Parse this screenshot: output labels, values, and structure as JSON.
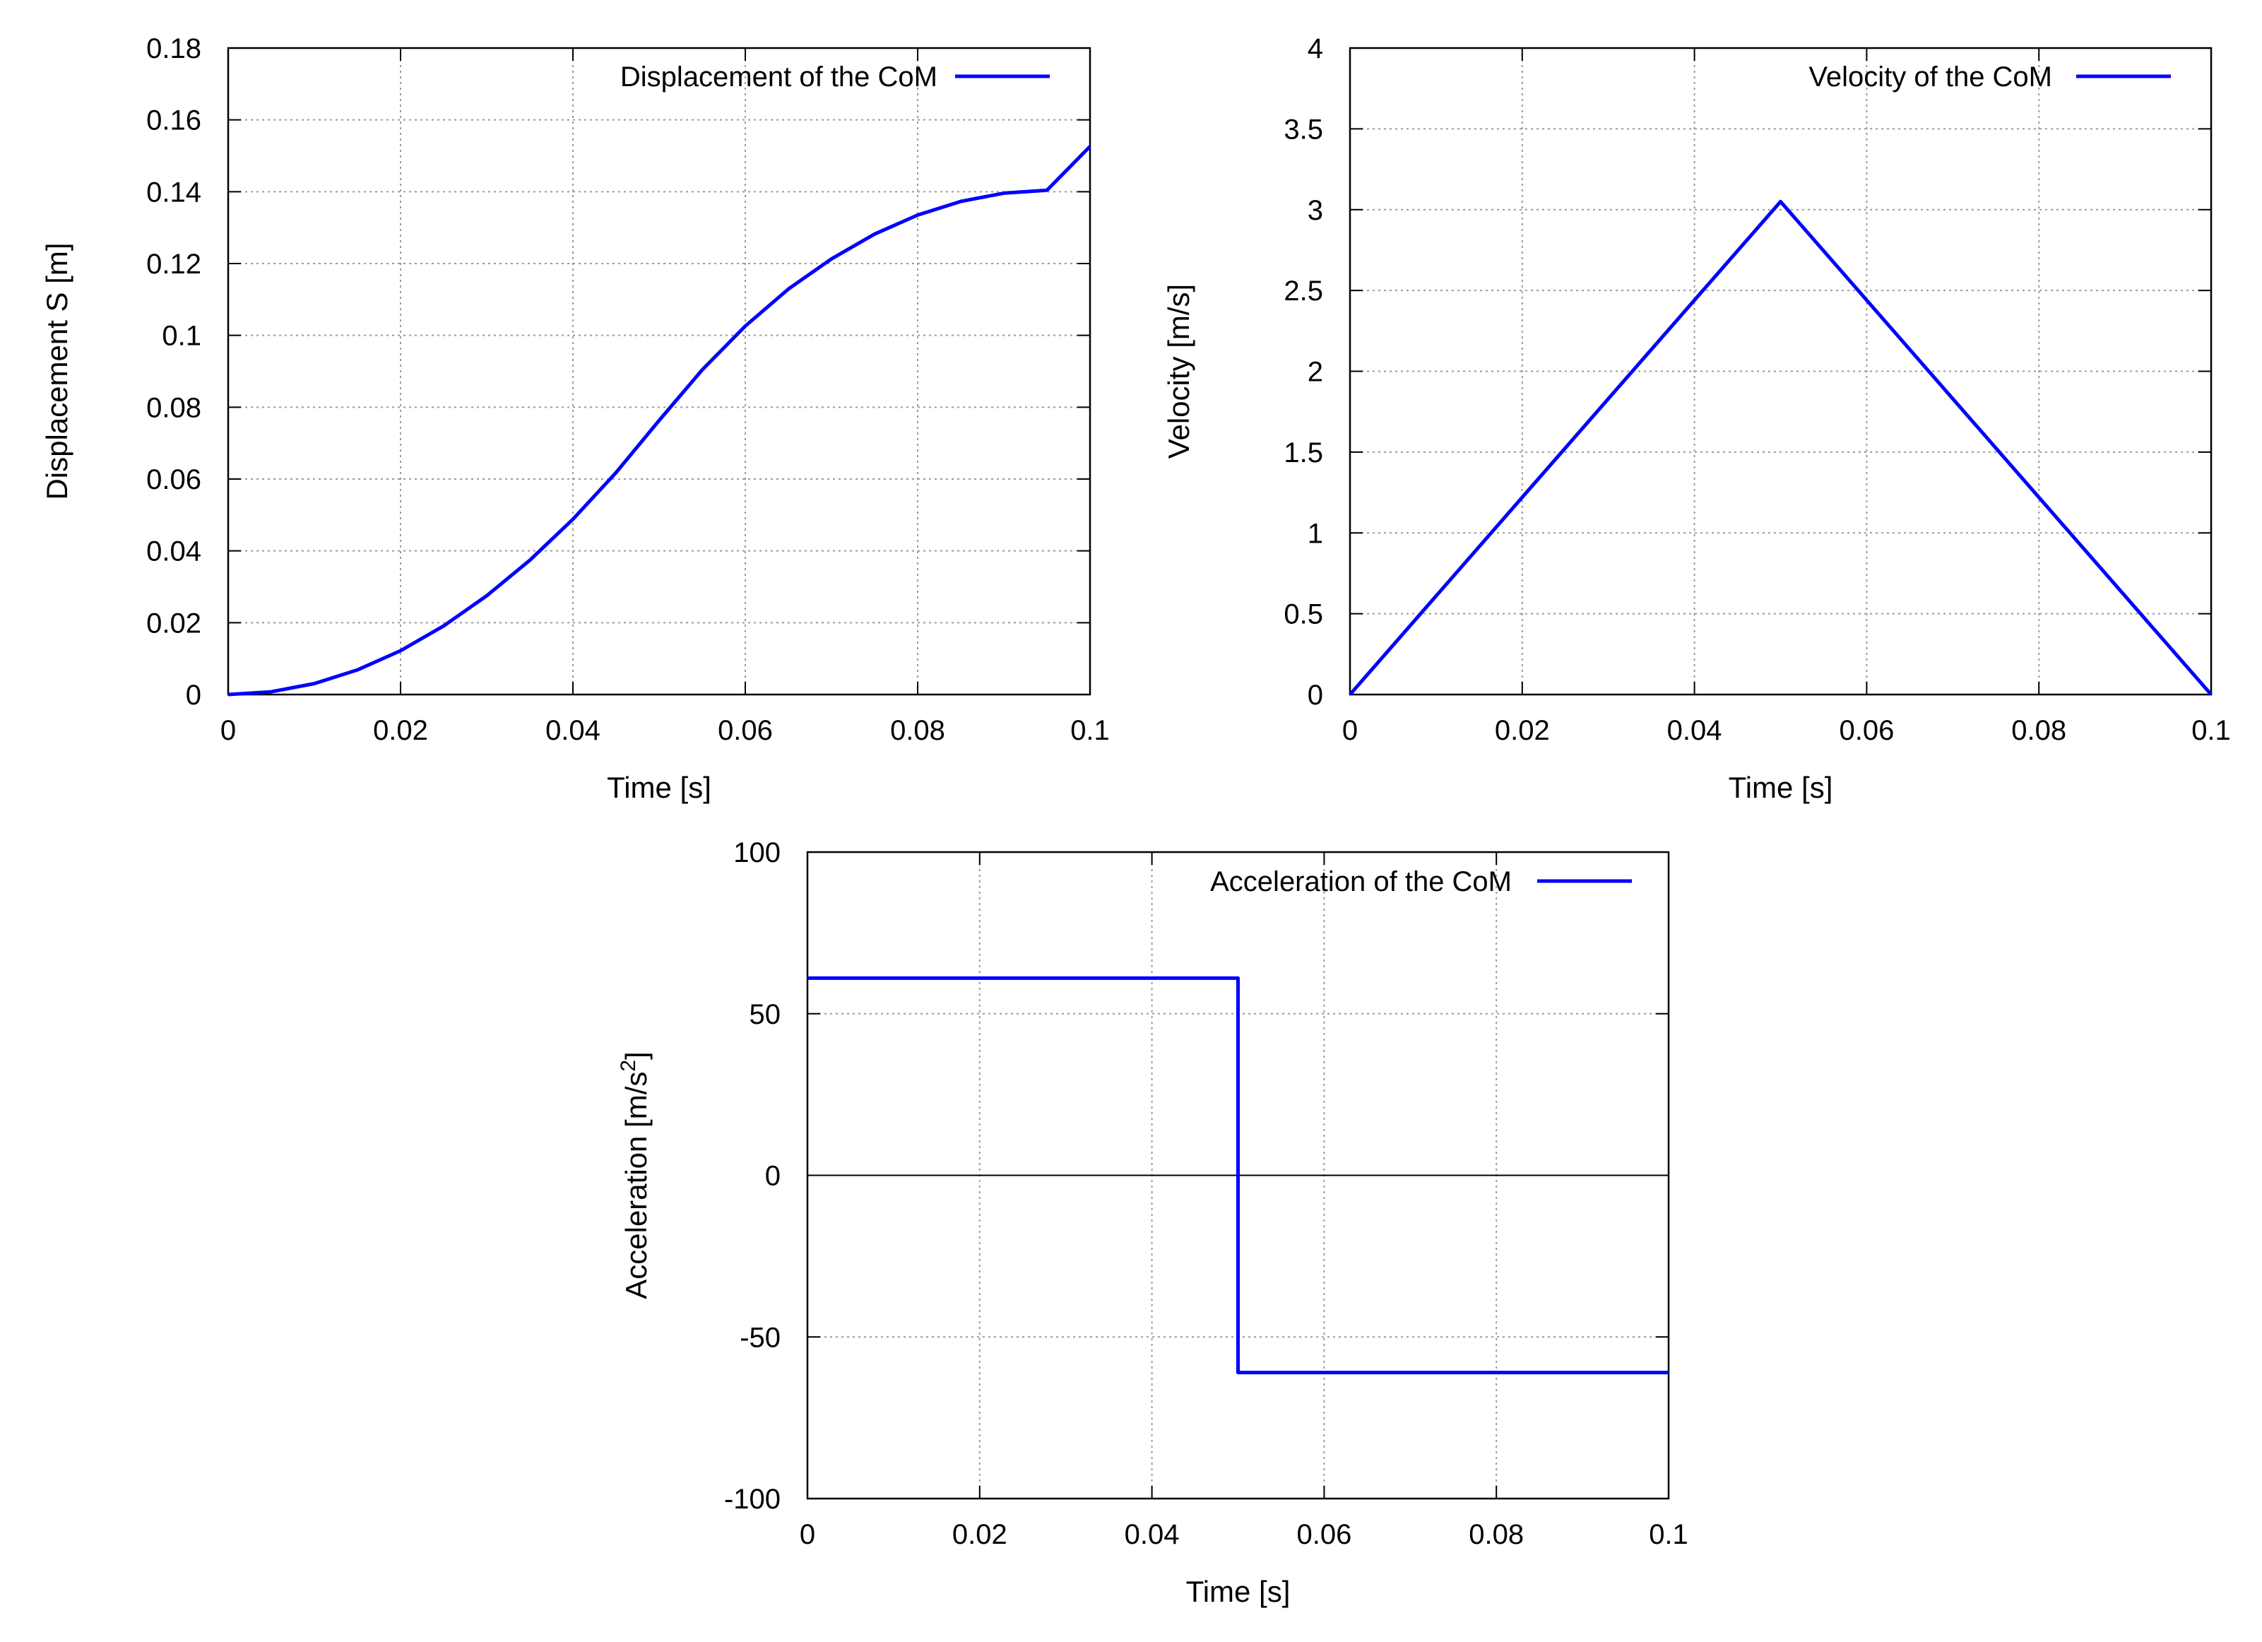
{
  "chart_data": [
    {
      "type": "line",
      "title": "",
      "xlabel": "Time [s]",
      "ylabel": "Displacement S [m]",
      "xlim": [
        0,
        0.1
      ],
      "ylim": [
        0,
        0.18
      ],
      "x_ticks": [
        0,
        0.02,
        0.04,
        0.06,
        0.08,
        0.1
      ],
      "x_tick_labels": [
        "0",
        "0.02",
        "0.04",
        "0.06",
        "0.08",
        "0.1"
      ],
      "y_ticks": [
        0,
        0.02,
        0.04,
        0.06,
        0.08,
        0.1,
        0.12,
        0.14,
        0.16,
        0.18
      ],
      "y_tick_labels": [
        "0",
        "0.02",
        "0.04",
        "0.06",
        "0.08",
        "0.1",
        "0.12",
        "0.14",
        "0.16",
        "0.18"
      ],
      "grid": true,
      "legend_position": "top-right",
      "series": [
        {
          "name": "Displacement of the CoM",
          "color": "#0000ff",
          "x": [
            0,
            0.005,
            0.01,
            0.015,
            0.02,
            0.025,
            0.03,
            0.035,
            0.04,
            0.045,
            0.05,
            0.055,
            0.06,
            0.065,
            0.07,
            0.075,
            0.08,
            0.085,
            0.09,
            0.095,
            0.1
          ],
          "y": [
            0,
            0.00076,
            0.00305,
            0.00686,
            0.0122,
            0.0191,
            0.0275,
            0.0374,
            0.0488,
            0.0618,
            0.0763,
            0.0904,
            0.1026,
            0.1129,
            0.1213,
            0.1282,
            0.1335,
            0.1373,
            0.1396,
            0.1404,
            0.1526
          ]
        }
      ]
    },
    {
      "type": "line",
      "title": "",
      "xlabel": "Time [s]",
      "ylabel": "Velocity [m/s]",
      "xlim": [
        0,
        0.1
      ],
      "ylim": [
        0,
        4
      ],
      "x_ticks": [
        0,
        0.02,
        0.04,
        0.06,
        0.08,
        0.1
      ],
      "x_tick_labels": [
        "0",
        "0.02",
        "0.04",
        "0.06",
        "0.08",
        "0.1"
      ],
      "y_ticks": [
        0,
        0.5,
        1,
        1.5,
        2,
        2.5,
        3,
        3.5,
        4
      ],
      "y_tick_labels": [
        "0",
        "0.5",
        "1",
        "1.5",
        "2",
        "2.5",
        "3",
        "3.5",
        "4"
      ],
      "grid": true,
      "legend_position": "top-right",
      "series": [
        {
          "name": "Velocity of the CoM",
          "color": "#0000ff",
          "x": [
            0,
            0.05,
            0.1
          ],
          "y": [
            0,
            3.05,
            0
          ]
        }
      ]
    },
    {
      "type": "line",
      "title": "",
      "xlabel": "Time [s]",
      "ylabel": "Acceleration [m/s",
      "ylabel_superscript": "2",
      "ylabel_suffix": "]",
      "xlim": [
        0,
        0.1
      ],
      "ylim": [
        -100,
        100
      ],
      "x_ticks": [
        0,
        0.02,
        0.04,
        0.06,
        0.08,
        0.1
      ],
      "x_tick_labels": [
        "0",
        "0.02",
        "0.04",
        "0.06",
        "0.08",
        "0.1"
      ],
      "y_ticks": [
        -100,
        -50,
        0,
        50,
        100
      ],
      "y_tick_labels": [
        "-100",
        "-50",
        "0",
        "50",
        "100"
      ],
      "zero_line": true,
      "grid": true,
      "legend_position": "top-right",
      "series": [
        {
          "name": "Acceleration of the CoM",
          "color": "#0000ff",
          "x": [
            0,
            0.05,
            0.05,
            0.1
          ],
          "y": [
            61,
            61,
            -61,
            -61
          ]
        }
      ]
    }
  ]
}
